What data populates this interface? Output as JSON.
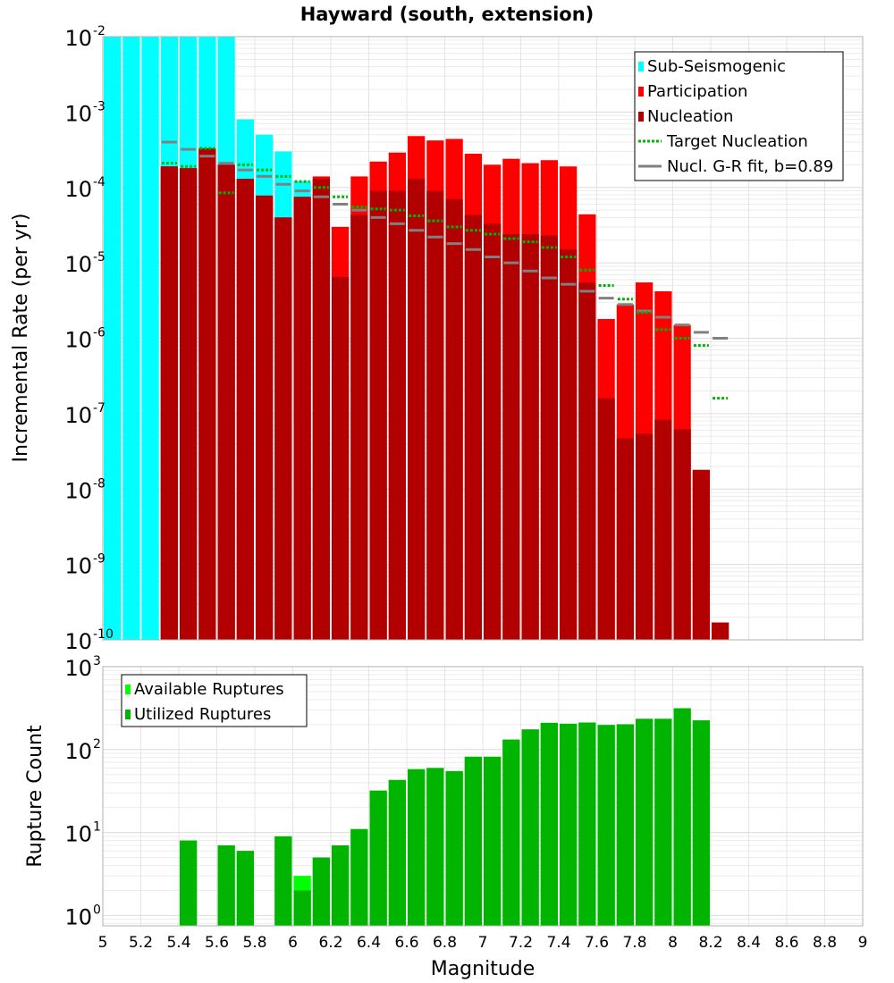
{
  "chart_data": [
    {
      "type": "bar",
      "title": "Hayward (south, extension)",
      "xlabel": "",
      "ylabel": "Incremental Rate (per yr)",
      "xlim": [
        5,
        9
      ],
      "ylim": [
        1e-10,
        0.01
      ],
      "yscale": "log",
      "grid": true,
      "legend_position": "top-right",
      "colors": {
        "sub_seismogenic": "#00ffff",
        "participation": "#ff0000",
        "nucleation": "#b20000",
        "target_nucleation": "#00b400",
        "gr_fit": "#808080"
      },
      "y_tick_labels": [
        {
          "base": "10",
          "exp": "-2"
        },
        {
          "base": "10",
          "exp": "-3"
        },
        {
          "base": "10",
          "exp": "-4"
        },
        {
          "base": "10",
          "exp": "-5"
        },
        {
          "base": "10",
          "exp": "-6"
        },
        {
          "base": "10",
          "exp": "-7"
        },
        {
          "base": "10",
          "exp": "-8"
        },
        {
          "base": "10",
          "exp": "-9"
        },
        {
          "base": "10",
          "exp": "-10"
        }
      ],
      "legend": [
        {
          "label": "Sub-Seismogenic",
          "kind": "bar",
          "color": "#00ffff"
        },
        {
          "label": "Participation",
          "kind": "bar",
          "color": "#ff0000"
        },
        {
          "label": "Nucleation",
          "kind": "bar",
          "color": "#b20000"
        },
        {
          "label": "Target Nucleation",
          "kind": "dotted",
          "color": "#00b400"
        },
        {
          "label": "Nucl. G-R fit, b=0.89",
          "kind": "line",
          "color": "#808080"
        }
      ],
      "x": [
        5.05,
        5.15,
        5.25,
        5.35,
        5.45,
        5.55,
        5.65,
        5.75,
        5.85,
        5.95,
        6.05,
        6.15,
        6.25,
        6.35,
        6.45,
        6.55,
        6.65,
        6.75,
        6.85,
        6.95,
        7.05,
        7.15,
        7.25,
        7.35,
        7.45,
        7.55,
        7.65,
        7.75,
        7.85,
        7.95,
        8.05,
        8.15,
        8.25
      ],
      "series": [
        {
          "name": "Sub-Seismogenic",
          "values": [
            0.01,
            0.01,
            0.01,
            0.01,
            0.01,
            0.01,
            0.01,
            0.0008,
            0.0005,
            0.0003,
            0.00012,
            4.5e-05,
            null,
            6e-05,
            null,
            null,
            null,
            null,
            null,
            null,
            null,
            null,
            null,
            null,
            null,
            null,
            null,
            null,
            null,
            null,
            null,
            null,
            null
          ]
        },
        {
          "name": "Participation",
          "values": [
            null,
            null,
            null,
            0.00019,
            0.00018,
            0.00033,
            0.0002,
            0.00013,
            7.8e-05,
            4e-05,
            7.5e-05,
            0.00014,
            3e-05,
            0.00014,
            0.00022,
            0.00029,
            0.00048,
            0.00042,
            0.00044,
            0.00028,
            0.0002,
            0.00024,
            0.00021,
            0.00023,
            0.00019,
            4.4e-05,
            1.8e-06,
            2.8e-06,
            5.5e-06,
            4.2e-06,
            1.5e-06,
            1.7e-08,
            null
          ]
        },
        {
          "name": "Nucleation",
          "values": [
            null,
            null,
            null,
            0.00019,
            0.00018,
            0.00033,
            0.0002,
            0.00013,
            7.8e-05,
            4e-05,
            7.5e-05,
            0.00013,
            6.5e-06,
            4.3e-05,
            9e-05,
            9e-05,
            0.00013,
            9e-05,
            7e-05,
            4.3e-05,
            3.3e-05,
            2.4e-05,
            2.4e-05,
            2.3e-05,
            1.5e-05,
            5.5e-06,
            1.6e-07,
            4.7e-08,
            5.4e-08,
            8.3e-08,
            6.2e-08,
            1.8e-08,
            1.7e-10
          ]
        },
        {
          "name": "Target Nucleation",
          "values": [
            null,
            null,
            null,
            0.00021,
            0.00019,
            0.00033,
            8.5e-05,
            0.0002,
            0.00017,
            0.00014,
            0.00012,
            0.0001,
            7.5e-05,
            5.5e-05,
            5.2e-05,
            5e-05,
            4.2e-05,
            3.6e-05,
            3e-05,
            2.7e-05,
            2.4e-05,
            2.1e-05,
            1.9e-05,
            1.6e-05,
            1.2e-05,
            8e-06,
            5e-06,
            3.3e-06,
            2.2e-06,
            1.3e-06,
            1e-06,
            8e-07,
            1.6e-07
          ]
        },
        {
          "name": "Nucl. G-R fit, b=0.89",
          "values": [
            null,
            null,
            null,
            0.0004,
            0.00032,
            0.00026,
            0.00021,
            0.00017,
            0.00014,
            0.00011,
            9e-05,
            7.5e-05,
            6e-05,
            5e-05,
            4e-05,
            3.3e-05,
            2.7e-05,
            2.2e-05,
            1.8e-05,
            1.5e-05,
            1.2e-05,
            1e-05,
            7.8e-06,
            6.3e-06,
            5.2e-06,
            4.2e-06,
            3.4e-06,
            2.8e-06,
            2.3e-06,
            1.9e-06,
            1.5e-06,
            1.2e-06,
            1e-06
          ]
        }
      ]
    },
    {
      "type": "bar",
      "title": "",
      "xlabel": "Magnitude",
      "ylabel": "Rupture Count",
      "xlim": [
        5,
        9
      ],
      "ylim": [
        0.75,
        1000
      ],
      "yscale": "log",
      "grid": true,
      "legend_position": "top-left",
      "colors": {
        "available": "#00ff00",
        "utilized": "#00b400"
      },
      "y_tick_labels": [
        {
          "base": "10",
          "exp": "3"
        },
        {
          "base": "10",
          "exp": "2"
        },
        {
          "base": "10",
          "exp": "1"
        },
        {
          "base": "10",
          "exp": "0"
        }
      ],
      "x_tick_labels": [
        "5",
        "5.2",
        "5.4",
        "5.6",
        "5.8",
        "6",
        "6.2",
        "6.4",
        "6.6",
        "6.8",
        "7",
        "7.2",
        "7.4",
        "7.6",
        "7.8",
        "8",
        "8.2",
        "8.4",
        "8.6",
        "8.8",
        "9"
      ],
      "legend": [
        {
          "label": "Available Ruptures",
          "kind": "bar",
          "color": "#00ff00"
        },
        {
          "label": "Utilized Ruptures",
          "kind": "bar",
          "color": "#00b400"
        }
      ],
      "x": [
        5.05,
        5.15,
        5.25,
        5.35,
        5.45,
        5.55,
        5.65,
        5.75,
        5.85,
        5.95,
        6.05,
        6.15,
        6.25,
        6.35,
        6.45,
        6.55,
        6.65,
        6.75,
        6.85,
        6.95,
        7.05,
        7.15,
        7.25,
        7.35,
        7.45,
        7.55,
        7.65,
        7.75,
        7.85,
        7.95,
        8.05,
        8.15,
        8.25
      ],
      "series": [
        {
          "name": "Available Ruptures",
          "values": [
            null,
            null,
            null,
            null,
            8,
            null,
            7,
            6,
            null,
            9,
            3,
            5,
            7,
            11,
            32,
            43,
            58,
            60,
            55,
            82,
            82,
            132,
            175,
            210,
            205,
            212,
            198,
            202,
            235,
            235,
            315,
            225,
            null
          ]
        },
        {
          "name": "Utilized Ruptures",
          "values": [
            null,
            null,
            null,
            null,
            8,
            null,
            7,
            6,
            null,
            9,
            2,
            5,
            7,
            11,
            32,
            43,
            58,
            60,
            55,
            82,
            82,
            132,
            175,
            210,
            205,
            212,
            198,
            202,
            235,
            235,
            315,
            225,
            null
          ]
        }
      ]
    }
  ]
}
